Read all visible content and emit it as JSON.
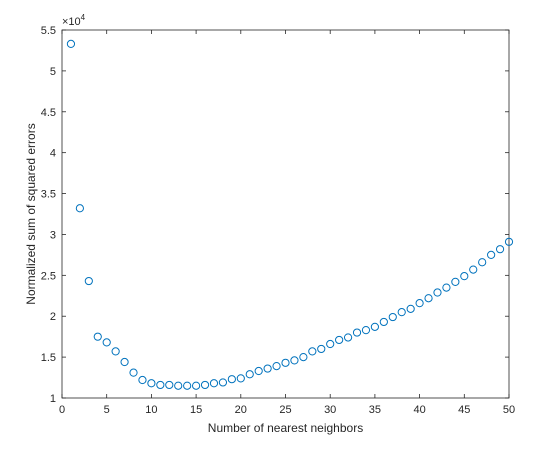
{
  "chart_data": {
    "type": "scatter",
    "title": "",
    "xlabel": "Number of nearest neighbors",
    "ylabel": "Normalized sum of squared errors",
    "y_exponent_label": "×10",
    "y_exponent_power": "4",
    "xlim": [
      0,
      50
    ],
    "ylim": [
      1,
      5.5
    ],
    "x_ticks": [
      0,
      5,
      10,
      15,
      20,
      25,
      30,
      35,
      40,
      45,
      50
    ],
    "x_tick_labels": [
      "0",
      "5",
      "10",
      "15",
      "20",
      "25",
      "30",
      "35",
      "40",
      "45",
      "50"
    ],
    "y_ticks": [
      1,
      1.5,
      2,
      2.5,
      3,
      3.5,
      4,
      4.5,
      5,
      5.5
    ],
    "y_tick_labels": [
      "1",
      "1.5",
      "2",
      "2.5",
      "3",
      "3.5",
      "4",
      "4.5",
      "5",
      "5.5"
    ],
    "grid": false,
    "marker": "circle-open",
    "color": "#0072BD",
    "series": [
      {
        "x": [
          1,
          2,
          3,
          4,
          5,
          6,
          7,
          8,
          9,
          10,
          11,
          12,
          13,
          14,
          15,
          16,
          17,
          18,
          19,
          20,
          21,
          22,
          23,
          24,
          25,
          26,
          27,
          28,
          29,
          30,
          31,
          32,
          33,
          34,
          35,
          36,
          37,
          38,
          39,
          40,
          41,
          42,
          43,
          44,
          45,
          46,
          47,
          48,
          49,
          50
        ],
        "y": [
          5.33,
          3.32,
          2.43,
          1.75,
          1.68,
          1.57,
          1.44,
          1.31,
          1.22,
          1.18,
          1.16,
          1.16,
          1.15,
          1.15,
          1.15,
          1.16,
          1.18,
          1.19,
          1.23,
          1.24,
          1.29,
          1.33,
          1.36,
          1.39,
          1.43,
          1.46,
          1.5,
          1.57,
          1.6,
          1.66,
          1.71,
          1.74,
          1.8,
          1.83,
          1.87,
          1.93,
          1.99,
          2.05,
          2.09,
          2.16,
          2.22,
          2.29,
          2.35,
          2.42,
          2.49,
          2.57,
          2.66,
          2.75,
          2.82,
          2.91
        ]
      }
    ]
  }
}
